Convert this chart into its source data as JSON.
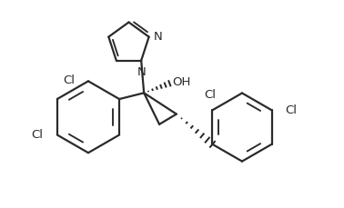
{
  "background_color": "#ffffff",
  "line_color": "#2a2a2a",
  "line_width": 1.6,
  "font_size": 9.5,
  "figsize": [
    3.78,
    2.29
  ],
  "dpi": 100,
  "xlim": [
    0,
    10
  ],
  "ylim": [
    0,
    6.06
  ]
}
